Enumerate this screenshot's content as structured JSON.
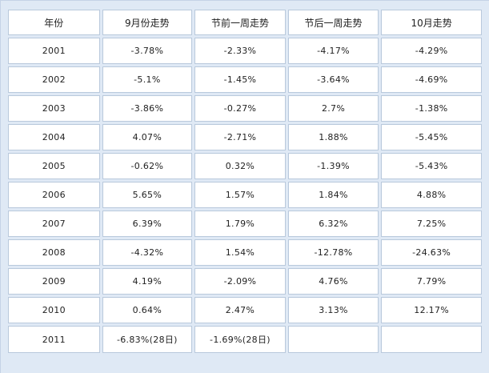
{
  "table": {
    "headers": [
      "年份",
      "9月份走势",
      "节前一周走势",
      "节后一周走势",
      "10月走势"
    ],
    "rows": [
      [
        "2001",
        "-3.78%",
        "-2.33%",
        "-4.17%",
        "-4.29%"
      ],
      [
        "2002",
        "-5.1%",
        "-1.45%",
        "-3.64%",
        "-4.69%"
      ],
      [
        "2003",
        "-3.86%",
        "-0.27%",
        "2.7%",
        "-1.38%"
      ],
      [
        "2004",
        "4.07%",
        "-2.71%",
        "1.88%",
        "-5.45%"
      ],
      [
        "2005",
        "-0.62%",
        "0.32%",
        "-1.39%",
        "-5.43%"
      ],
      [
        "2006",
        "5.65%",
        "1.57%",
        "1.84%",
        "4.88%"
      ],
      [
        "2007",
        "6.39%",
        "1.79%",
        "6.32%",
        "7.25%"
      ],
      [
        "2008",
        "-4.32%",
        "1.54%",
        "-12.78%",
        "-24.63%"
      ],
      [
        "2009",
        "4.19%",
        "-2.09%",
        "4.76%",
        "7.79%"
      ],
      [
        "2010",
        "0.64%",
        "2.47%",
        "3.13%",
        "12.17%"
      ],
      [
        "2011",
        "-6.83%(28日)",
        "-1.69%(28日)",
        "",
        ""
      ]
    ]
  }
}
